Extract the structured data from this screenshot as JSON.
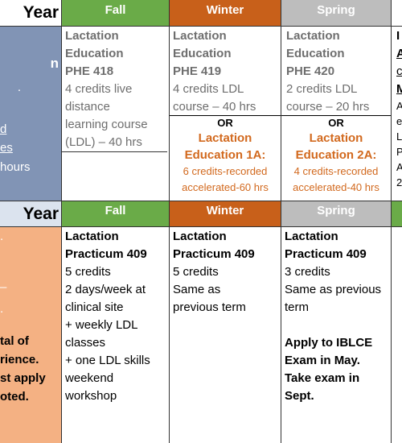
{
  "row1": {
    "year_label": "Year",
    "headers": {
      "fall": "Fall",
      "winter": "Winter",
      "spring": "Spring"
    },
    "left_fragments": [
      "n",
      ".",
      "d",
      "es",
      "hours"
    ],
    "fall": {
      "title1": "Lactation",
      "title2": "Education",
      "code": "PHE 418",
      "lines": [
        "4 credits live",
        "distance",
        "learning course",
        "(LDL) – 40 hrs"
      ]
    },
    "winter": {
      "title1": "Lactation",
      "title2": "Education",
      "code": "PHE 419",
      "lines": [
        "4 credits LDL",
        "course – 40 hrs"
      ],
      "or": "OR",
      "alt_title1": "Lactation",
      "alt_title2": "Education 1A:",
      "alt_lines": [
        "6 credits-recorded",
        "accelerated-60 hrs"
      ]
    },
    "spring": {
      "title1": "Lactation",
      "title2": "Education",
      "code": "PHE 420",
      "lines": [
        "2 credits LDL",
        "course – 20 hrs"
      ],
      "or": "OR",
      "alt_title1": "Lactation",
      "alt_title2": "Education 2A:",
      "alt_lines": [
        "4 credits-recorded",
        "accelerated-40 hrs"
      ]
    },
    "right_fragments": [
      "I",
      "A",
      "c",
      "M",
      "A",
      "e",
      "L",
      "P",
      "A",
      "2"
    ]
  },
  "row2": {
    "year_label": "Year",
    "headers": {
      "fall": "Fall",
      "winter": "Winter",
      "spring": "Spring"
    },
    "left_fragments": [
      ".",
      "–",
      ".",
      "tal of",
      "rience.",
      "st apply",
      "oted."
    ],
    "fall": {
      "title1": "Lactation",
      "title2": "Practicum 409",
      "lines": [
        "5 credits",
        "2 days/week at",
        "clinical site",
        "+ weekly LDL",
        "classes",
        "+ one LDL skills",
        "weekend",
        "workshop"
      ]
    },
    "winter": {
      "title1": "Lactation",
      "title2": "Practicum 409",
      "lines": [
        "5 credits",
        "Same as",
        "previous term"
      ]
    },
    "spring": {
      "title1": "Lactation",
      "title2": "Practicum 409",
      "lines": [
        "3 credits",
        "Same as previous",
        "term"
      ],
      "notes": [
        "Apply to IBLCE",
        "Exam in May.",
        "Take exam in",
        "Sept."
      ]
    }
  }
}
